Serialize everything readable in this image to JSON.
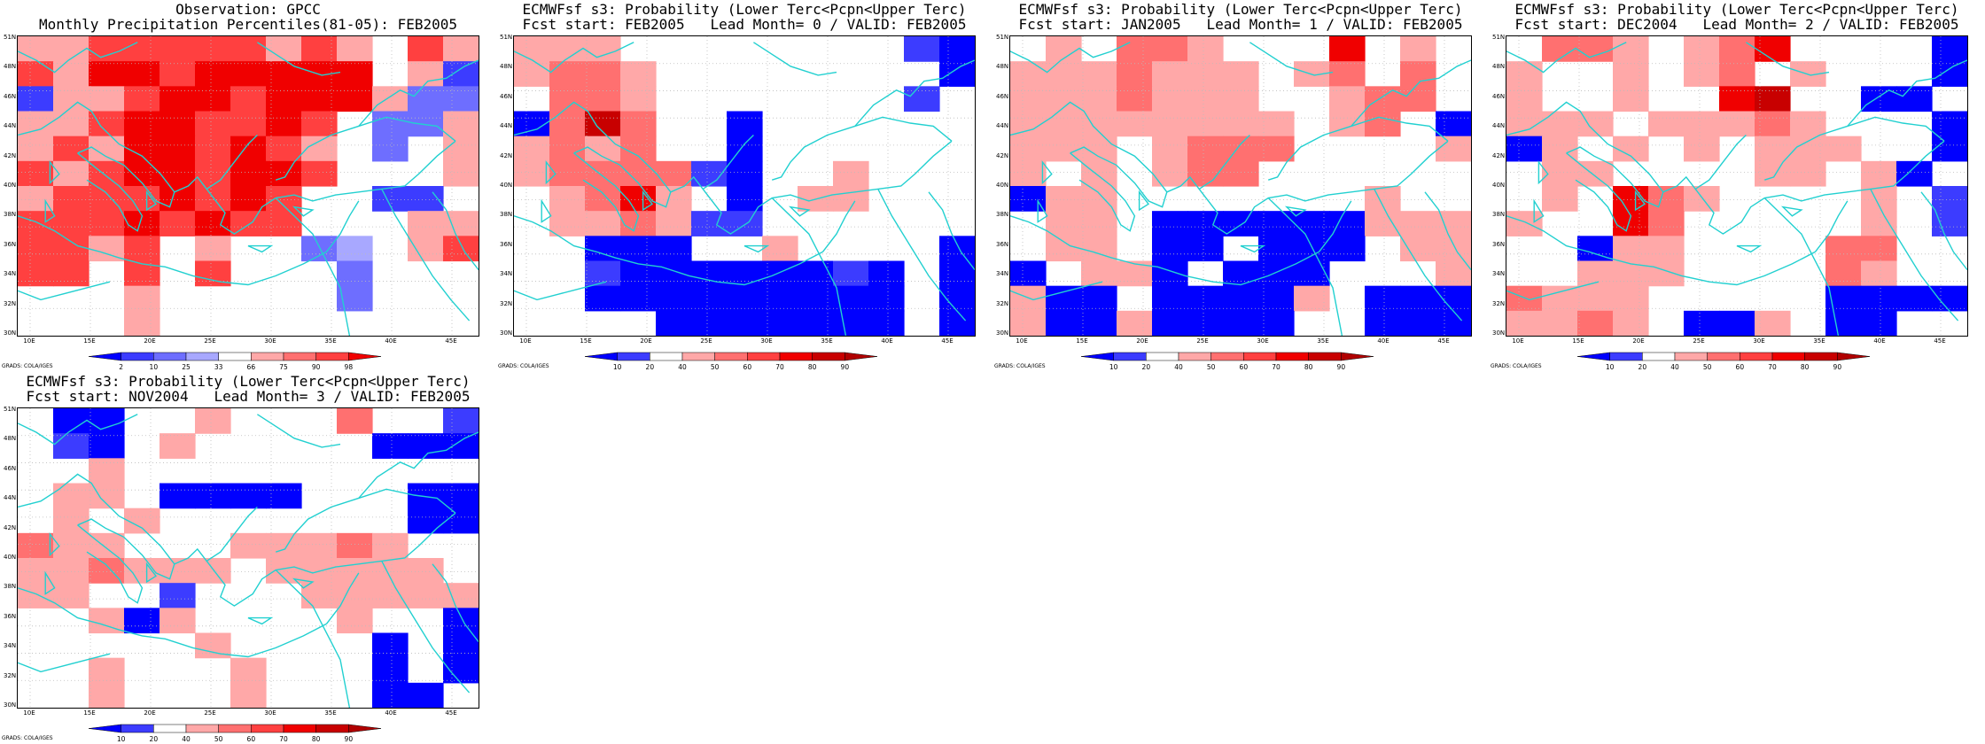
{
  "colors": {
    "dark_blue": "#0000ff",
    "blue": "#3c3cff",
    "mid_blue": "#6e6eff",
    "light_blue": "#a8a8ff",
    "white": "#ffffff",
    "light_red": "#ffa8a8",
    "mid_red": "#ff7070",
    "red": "#ff4040",
    "dark_red": "#f00000",
    "deep_red": "#c80000",
    "coast": "#22d0d0",
    "grid": "#bbbbbb"
  },
  "lat_labels": [
    "51N",
    "48N",
    "46N",
    "44N",
    "42N",
    "40N",
    "38N",
    "36N",
    "34N",
    "32N",
    "30N"
  ],
  "lon_labels": [
    "10E",
    "15E",
    "20E",
    "25E",
    "30E",
    "35E",
    "40E",
    "45E"
  ],
  "credit": "GRADS: COLA/IGES",
  "legend_obs": {
    "labels": [
      "2",
      "10",
      "25",
      "33",
      "66",
      "75",
      "90",
      "98"
    ],
    "colors": [
      "#0000ff",
      "#3c3cff",
      "#6e6eff",
      "#a8a8ff",
      "#ffffff",
      "#ffa8a8",
      "#ff7070",
      "#ff4040",
      "#f00000"
    ]
  },
  "legend_fc": {
    "labels": [
      "10",
      "20",
      "40",
      "50",
      "60",
      "70",
      "80",
      "90"
    ],
    "colors": [
      "#0000ff",
      "#3c3cff",
      "#ffffff",
      "#ffa8a8",
      "#ff7070",
      "#ff4040",
      "#f00000",
      "#c80000",
      "#b00000"
    ]
  },
  "panels": [
    {
      "title1": "Observation: GPCC",
      "title2": "Monthly Precipitation Percentiles(81-05): FEB2005",
      "legend": "obs",
      "grid": [
        "ttrrrrrtrtwrt",
        "rtRRrRRRRRwtb",
        "bttrRRrRRRtcc",
        "ttrRRrrRrwcct",
        "trtRRrRrtwcwt",
        "rtrRRrRRrwwwt",
        "trrrRrRrwwbbw",
        "rrrRrRrrwwwtt",
        "rrtrwtwwcawtr",
        "rrwrwrwwwcwww",
        "wwwtwwwwwcwww",
        "wwwtwwwwwwwww"
      ]
    },
    {
      "title1": "ECMWFsf s3: Probability (Lower Terc<Pcpn<Upper Terc)",
      "title2": "Fcst start: FEB2005   Lead Month= 0 / VALID: FEB2005",
      "legend": "fc",
      "grid": [
        "lltwwwwwwwwbB",
        "lMMlwwwwwwwwB",
        "wMMlwwwwwwwbw",
        "BMDMwwBwwwwww",
        "lMlMwwBwwwwww",
        "lMMMMbBwwlwww",
        "wlMRlwBwllwww",
        "wllMlbbwwwwww",
        "wwBBBwwlwwwwB",
        "wwbBBBBBBbBwB",
        "wwBBBBBBBBBwB",
        "wwwwBBBBBBBwB"
      ]
    },
    {
      "title1": "ECMWFsf s3: Probability (Lower Terc<Pcpn<Upper Terc)",
      "title2": "Fcst start: JAN2005   Lead Month= 1 / VALID: FEB2005",
      "legend": "fc",
      "grid": [
        "wlwMMlwwwRwlw",
        "lllMlllwlMwMw",
        "lllMlllwwlMMw",
        "llllllllwlMwB",
        "lllwlMMMwwwwl",
        "lwlwlMMwwwwww",
        "Bllwwwwwwwlww",
        "wllwBBBBBBlll",
        "wllwBBwBBBwll",
        "BwllBwBBBwwwl",
        "lBBwBBBBlwBBB",
        "lBBlBBBBwwBBB"
      ]
    },
    {
      "title1": "ECMWFsf s3: Probability (Lower Terc<Pcpn<Upper Terc)",
      "title2": "Fcst start: DEC2004   Lead Month= 2 / VALID: FEB2005",
      "legend": "fc",
      "grid": [
        "wMMlwlMRwwwwB",
        "lwwlwlMwlwwwB",
        "lwwlwwRDwwBBw",
        "lllwlllMlwwwB",
        "BlwlwlwlllwwB",
        "wllwwwwllwlBw",
        "wlwRMlwwwwlwb",
        "lwwRMwwwwwlwb",
        "wwBllwwwwMMww",
        "wwlllwwwwMlww",
        "MlllwwwwwBBBB",
        "llMlwBBlwBBww"
      ]
    },
    {
      "title1": "ECMWFsf s3: Probability (Lower Terc<Pcpn<Upper Terc)",
      "title2": "Fcst start: NOV2004   Lead Month= 3 / VALID: FEB2005",
      "legend": "fc",
      "grid": [
        "wBBwwlwwwMwwb",
        "wbBwlwwwwwBBB",
        "wwlwwwwwwwwww",
        "wllwBBBBwwwBB",
        "wlwlwwwwwwwBB",
        "MllwwwlllMlww",
        "llMlllwlllllw",
        "llwwbwwwlllll",
        "wwlBlwwwwlwwB",
        "wwwwwlwwwwBwB",
        "wwlwwwlwwwBwB",
        "wwlwwwlwwwBBw"
      ]
    }
  ]
}
